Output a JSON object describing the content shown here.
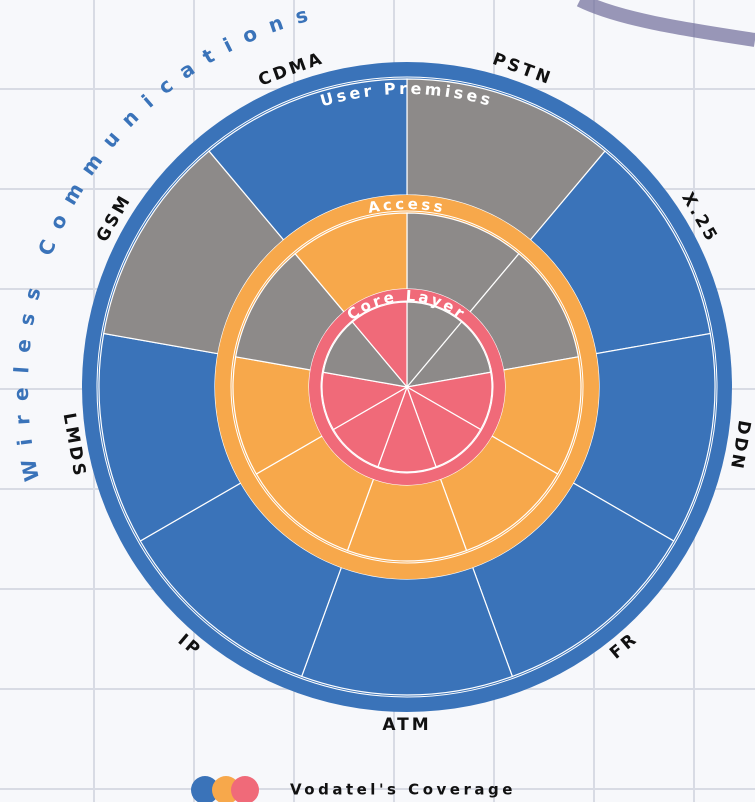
{
  "diagram": {
    "arc_title": "Wireless Communications",
    "rings": [
      "User Premises",
      "Access",
      "Core Layer"
    ],
    "segments": [
      "PSTN",
      "X.25",
      "DDN",
      "FR",
      "ATM",
      "IP",
      "LMDS",
      "GSM",
      "CDMA"
    ],
    "legend": "Vodatel's Coverage"
  }
}
